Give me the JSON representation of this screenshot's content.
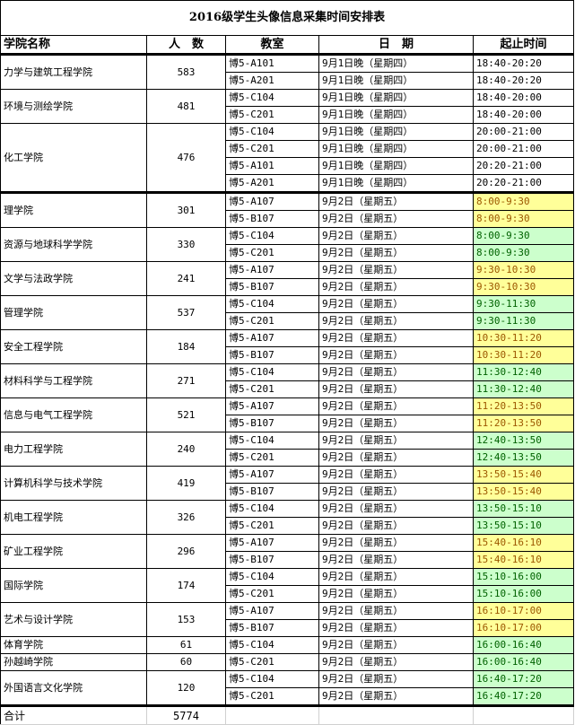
{
  "title": "2016级学生头像信息采集时间安排表",
  "headers": [
    "学院名称",
    "人　数",
    "教室",
    "日　期",
    "起止时间"
  ],
  "colors": {
    "yellow_fill": "#ffff99",
    "green_fill": "#ccffcc"
  },
  "colleges": [
    {
      "name": "力学与建筑工程学院",
      "count": "583",
      "sessions": [
        {
          "room": "博5-A101",
          "date": "9月1日晚（星期四）",
          "time": "18:40-20:20",
          "fill": "white"
        },
        {
          "room": "博5-A201",
          "date": "9月1日晚（星期四）",
          "time": "18:40-20:20",
          "fill": "white"
        }
      ]
    },
    {
      "name": "环境与测绘学院",
      "count": "481",
      "sessions": [
        {
          "room": "博5-C104",
          "date": "9月1日晚（星期四）",
          "time": "18:40-20:00",
          "fill": "white"
        },
        {
          "room": "博5-C201",
          "date": "9月1日晚（星期四）",
          "time": "18:40-20:00",
          "fill": "white"
        }
      ]
    },
    {
      "name": "化工学院",
      "count": "476",
      "sessions": [
        {
          "room": "博5-C104",
          "date": "9月1日晚（星期四）",
          "time": "20:00-21:00",
          "fill": "white"
        },
        {
          "room": "博5-C201",
          "date": "9月1日晚（星期四）",
          "time": "20:00-21:00",
          "fill": "white"
        },
        {
          "room": "博5-A101",
          "date": "9月1日晚（星期四）",
          "time": "20:20-21:00",
          "fill": "white"
        },
        {
          "room": "博5-A201",
          "date": "9月1日晚（星期四）",
          "time": "20:20-21:00",
          "fill": "white"
        }
      ]
    },
    {
      "name": "理学院",
      "count": "301",
      "sessions": [
        {
          "room": "博5-A107",
          "date": "9月2日（星期五）",
          "time": "8:00-9:30",
          "fill": "yellow"
        },
        {
          "room": "博5-B107",
          "date": "9月2日（星期五）",
          "time": "8:00-9:30",
          "fill": "yellow"
        }
      ]
    },
    {
      "name": "资源与地球科学学院",
      "count": "330",
      "sessions": [
        {
          "room": "博5-C104",
          "date": "9月2日（星期五）",
          "time": "8:00-9:30",
          "fill": "green"
        },
        {
          "room": "博5-C201",
          "date": "9月2日（星期五）",
          "time": "8:00-9:30",
          "fill": "green"
        }
      ]
    },
    {
      "name": "文学与法政学院",
      "count": "241",
      "sessions": [
        {
          "room": "博5-A107",
          "date": "9月2日（星期五）",
          "time": "9:30-10:30",
          "fill": "yellow"
        },
        {
          "room": "博5-B107",
          "date": "9月2日（星期五）",
          "time": "9:30-10:30",
          "fill": "yellow"
        }
      ]
    },
    {
      "name": "管理学院",
      "count": "537",
      "sessions": [
        {
          "room": "博5-C104",
          "date": "9月2日（星期五）",
          "time": "9:30-11:30",
          "fill": "green"
        },
        {
          "room": "博5-C201",
          "date": "9月2日（星期五）",
          "time": "9:30-11:30",
          "fill": "green"
        }
      ]
    },
    {
      "name": "安全工程学院",
      "count": "184",
      "sessions": [
        {
          "room": "博5-A107",
          "date": "9月2日（星期五）",
          "time": "10:30-11:20",
          "fill": "yellow"
        },
        {
          "room": "博5-B107",
          "date": "9月2日（星期五）",
          "time": "10:30-11:20",
          "fill": "yellow"
        }
      ]
    },
    {
      "name": "材料科学与工程学院",
      "count": "271",
      "sessions": [
        {
          "room": "博5-C104",
          "date": "9月2日（星期五）",
          "time": "11:30-12:40",
          "fill": "green"
        },
        {
          "room": "博5-C201",
          "date": "9月2日（星期五）",
          "time": "11:30-12:40",
          "fill": "green"
        }
      ]
    },
    {
      "name": "信息与电气工程学院",
      "count": "521",
      "sessions": [
        {
          "room": "博5-A107",
          "date": "9月2日（星期五）",
          "time": "11:20-13:50",
          "fill": "yellow"
        },
        {
          "room": "博5-B107",
          "date": "9月2日（星期五）",
          "time": "11:20-13:50",
          "fill": "yellow"
        }
      ]
    },
    {
      "name": "电力工程学院",
      "count": "240",
      "sessions": [
        {
          "room": "博5-C104",
          "date": "9月2日（星期五）",
          "time": "12:40-13:50",
          "fill": "green"
        },
        {
          "room": "博5-C201",
          "date": "9月2日（星期五）",
          "time": "12:40-13:50",
          "fill": "green"
        }
      ]
    },
    {
      "name": "计算机科学与技术学院",
      "count": "419",
      "sessions": [
        {
          "room": "博5-A107",
          "date": "9月2日（星期五）",
          "time": "13:50-15:40",
          "fill": "yellow"
        },
        {
          "room": "博5-B107",
          "date": "9月2日（星期五）",
          "time": "13:50-15:40",
          "fill": "yellow"
        }
      ]
    },
    {
      "name": "机电工程学院",
      "count": "326",
      "sessions": [
        {
          "room": "博5-C104",
          "date": "9月2日（星期五）",
          "time": "13:50-15:10",
          "fill": "green"
        },
        {
          "room": "博5-C201",
          "date": "9月2日（星期五）",
          "time": "13:50-15:10",
          "fill": "green"
        }
      ]
    },
    {
      "name": "矿业工程学院",
      "count": "296",
      "sessions": [
        {
          "room": "博5-A107",
          "date": "9月2日（星期五）",
          "time": "15:40-16:10",
          "fill": "yellow"
        },
        {
          "room": "博5-B107",
          "date": "9月2日（星期五）",
          "time": "15:40-16:10",
          "fill": "yellow"
        }
      ]
    },
    {
      "name": "国际学院",
      "count": "174",
      "sessions": [
        {
          "room": "博5-C104",
          "date": "9月2日（星期五）",
          "time": "15:10-16:00",
          "fill": "green"
        },
        {
          "room": "博5-C201",
          "date": "9月2日（星期五）",
          "time": "15:10-16:00",
          "fill": "green"
        }
      ]
    },
    {
      "name": "艺术与设计学院",
      "count": "153",
      "sessions": [
        {
          "room": "博5-A107",
          "date": "9月2日（星期五）",
          "time": "16:10-17:00",
          "fill": "yellow"
        },
        {
          "room": "博5-B107",
          "date": "9月2日（星期五）",
          "time": "16:10-17:00",
          "fill": "yellow"
        }
      ]
    },
    {
      "name": "体育学院",
      "count": "61",
      "sessions": [
        {
          "room": "博5-C104",
          "date": "9月2日（星期五）",
          "time": "16:00-16:40",
          "fill": "green"
        }
      ]
    },
    {
      "name": "孙越崎学院",
      "count": "60",
      "sessions": [
        {
          "room": "博5-C201",
          "date": "9月2日（星期五）",
          "time": "16:00-16:40",
          "fill": "green"
        }
      ]
    },
    {
      "name": "外国语言文化学院",
      "count": "120",
      "sessions": [
        {
          "room": "博5-C104",
          "date": "9月2日（星期五）",
          "time": "16:40-17:20",
          "fill": "green"
        },
        {
          "room": "博5-C201",
          "date": "9月2日（星期五）",
          "time": "16:40-17:20",
          "fill": "green"
        }
      ]
    }
  ],
  "total": {
    "label": "合计",
    "count": "5774"
  }
}
